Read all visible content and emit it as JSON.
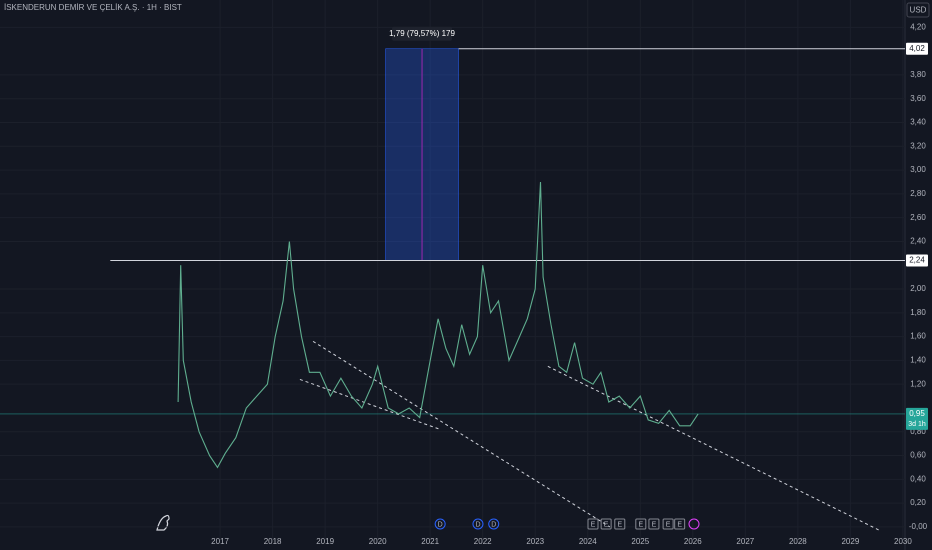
{
  "chart_data": {
    "type": "line",
    "title": "İSKENDERUN DEMİR VE ÇELİK A.Ş. · 1H · BIST",
    "currency": "USD",
    "x": [
      2016.2,
      2016.25,
      2016.3,
      2016.45,
      2016.6,
      2016.8,
      2016.95,
      2017.1,
      2017.3,
      2017.5,
      2017.7,
      2017.9,
      2018.05,
      2018.2,
      2018.32,
      2018.4,
      2018.55,
      2018.7,
      2018.9,
      2019.1,
      2019.3,
      2019.5,
      2019.7,
      2019.9,
      2020.0,
      2020.2,
      2020.4,
      2020.6,
      2020.8,
      2021.0,
      2021.15,
      2021.3,
      2021.45,
      2021.6,
      2021.75,
      2021.9,
      2022.0,
      2022.15,
      2022.3,
      2022.5,
      2022.7,
      2022.85,
      2023.0,
      2023.1,
      2023.15,
      2023.3,
      2023.45,
      2023.6,
      2023.75,
      2023.9,
      2024.1,
      2024.25,
      2024.4,
      2024.6,
      2024.8,
      2025.0,
      2025.15,
      2025.35,
      2025.55,
      2025.75,
      2025.95,
      2026.1
    ],
    "series": [
      {
        "color": "#5fae8f",
        "values": [
          1.05,
          2.2,
          1.4,
          1.05,
          0.8,
          0.6,
          0.5,
          0.62,
          0.75,
          1.0,
          1.1,
          1.2,
          1.6,
          1.9,
          2.4,
          2.0,
          1.6,
          1.3,
          1.3,
          1.1,
          1.25,
          1.1,
          1.0,
          1.2,
          1.35,
          1.0,
          0.95,
          1.0,
          0.92,
          1.4,
          1.75,
          1.5,
          1.35,
          1.7,
          1.45,
          1.6,
          2.2,
          1.8,
          1.9,
          1.4,
          1.6,
          1.75,
          2.0,
          2.9,
          2.1,
          1.7,
          1.35,
          1.3,
          1.55,
          1.25,
          1.2,
          1.3,
          1.05,
          1.1,
          1.0,
          1.1,
          0.9,
          0.87,
          0.98,
          0.85,
          0.85,
          0.95
        ]
      }
    ],
    "xlim": [
      2012.81,
      2030.04
    ],
    "ylim": [
      -0.11,
      4.43
    ],
    "xticks": [
      2017,
      2018,
      2019,
      2020,
      2021,
      2022,
      2023,
      2024,
      2025,
      2026,
      2027,
      2028,
      2029,
      2030
    ],
    "yticks": [
      {
        "value": 0,
        "label": "-0,00"
      },
      {
        "value": 0.2,
        "label": "0,20"
      },
      {
        "value": 0.4,
        "label": "0,40"
      },
      {
        "value": 0.6,
        "label": "0,60"
      },
      {
        "value": 0.8,
        "label": "0,80"
      },
      {
        "value": 1.2,
        "label": "1,20"
      },
      {
        "value": 1.4,
        "label": "1,40"
      },
      {
        "value": 1.6,
        "label": "1,60"
      },
      {
        "value": 1.8,
        "label": "1,80"
      },
      {
        "value": 2.0,
        "label": "2,00"
      },
      {
        "value": 2.4,
        "label": "2,40"
      },
      {
        "value": 2.6,
        "label": "2,60"
      },
      {
        "value": 2.8,
        "label": "2,80"
      },
      {
        "value": 3.0,
        "label": "3,00"
      },
      {
        "value": 3.2,
        "label": "3,20"
      },
      {
        "value": 3.4,
        "label": "3,40"
      },
      {
        "value": 3.6,
        "label": "3,60"
      },
      {
        "value": 3.8,
        "label": "3,80"
      },
      {
        "value": 4.2,
        "label": "4,20"
      }
    ],
    "grid": true,
    "levels": [
      {
        "value": 4.02,
        "label": "4,02",
        "from": 2021.54
      },
      {
        "value": 2.24,
        "label": "2,24",
        "from": 2014.91
      }
    ],
    "current": {
      "value": 0.95,
      "label": "0,95",
      "countdown": "3d 1h",
      "color": "#26a69a"
    },
    "measure": {
      "x0": 2020.15,
      "x1": 2021.54,
      "y0": 2.24,
      "y1": 4.02,
      "label": "1,79 (79,57%) 179"
    },
    "trendlines": [
      {
        "x": [
          2018.77,
          2024.42
        ],
        "y": [
          1.56,
          0
        ]
      },
      {
        "x": [
          2023.24,
          2029.56
        ],
        "y": [
          1.35,
          -0.03
        ]
      },
      {
        "x": [
          2018.52,
          2021.19
        ],
        "y": [
          1.24,
          0.82
        ]
      }
    ],
    "events": [
      {
        "label": "D",
        "x": 2021.19
      },
      {
        "label": "D",
        "x": 2021.91
      },
      {
        "label": "D",
        "x": 2022.21
      },
      {
        "label": "E",
        "x": 2024.1
      },
      {
        "label": "E",
        "x": 2024.35
      },
      {
        "label": "E",
        "x": 2024.61
      },
      {
        "label": "E",
        "x": 2025.01
      },
      {
        "label": "E",
        "x": 2025.26
      },
      {
        "label": "E",
        "x": 2025.53
      },
      {
        "label": "E",
        "x": 2025.75
      }
    ]
  }
}
